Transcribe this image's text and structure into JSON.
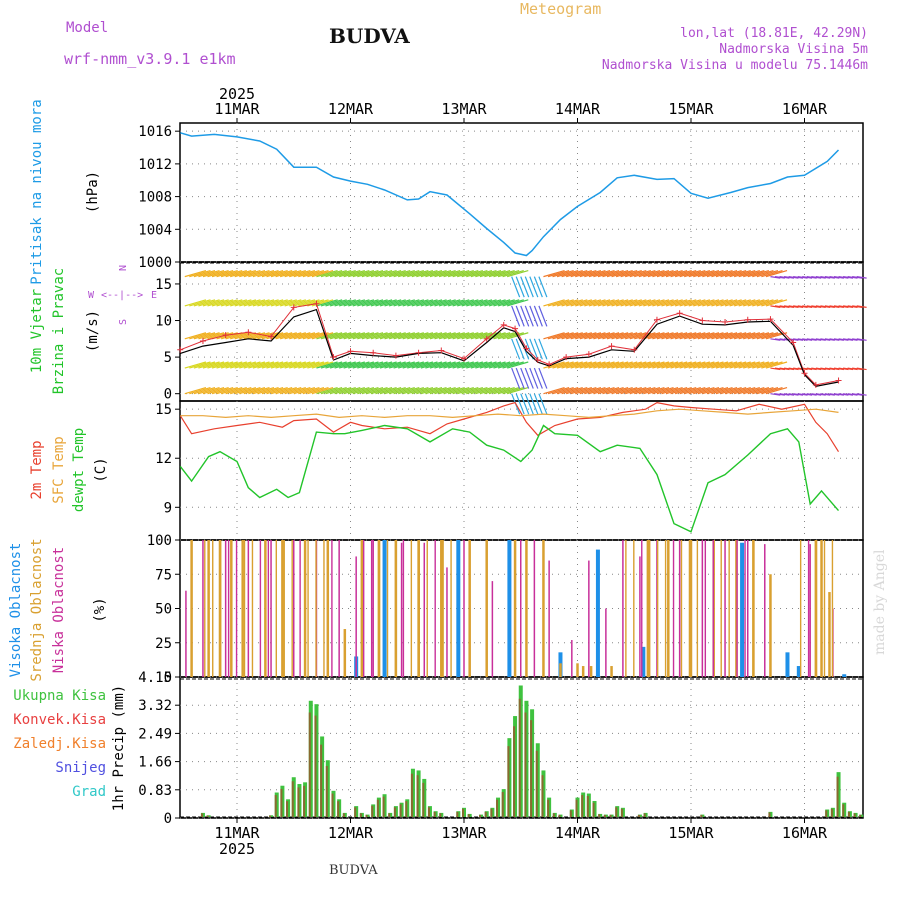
{
  "header": {
    "model_label": "Model",
    "model_name": "wrf-nmm_v3.9.1 e1km",
    "title": "BUDVA",
    "meteogram": "Meteogram",
    "lonlat": "lon,lat (18.81E, 42.29N)",
    "altitude": "Nadmorska Visina 5m",
    "model_altitude": "Nadmorska Visina u modelu 75.1446m",
    "bottom_title": "BUDVA",
    "watermark": "made by Angel"
  },
  "colors": {
    "pressure": "#1e9be6",
    "temp2m": "#e8402e",
    "sfc": "#e8a53a",
    "dew": "#22c42a",
    "high_cloud": "#1e90e8",
    "mid_cloud": "#d9a030",
    "low_cloud": "#c8309a",
    "precip": "#3fc23f",
    "conv": "#e84040",
    "frozen": "#f0802c",
    "snow": "#5050e0",
    "hail": "#30c8c8",
    "windmark": "#e0303a",
    "wind_avg": "#000000",
    "grid": "#888888"
  },
  "chart_data": [
    {
      "type": "line",
      "panel": "pressure",
      "ylabel_lines": [
        "Pritisak na nivou mora",
        "(hPa)"
      ],
      "ylim": [
        1000,
        1017
      ],
      "yticks": [
        "1016",
        "1012",
        "1008",
        "1004",
        "1000"
      ],
      "x_days": [
        "11MAR",
        "12MAR",
        "13MAR",
        "14MAR",
        "15MAR",
        "16MAR"
      ],
      "x_year": "2025",
      "grid": true,
      "x": [
        0,
        0.1,
        0.3,
        0.5,
        0.7,
        0.85,
        1.0,
        1.2,
        1.35,
        1.5,
        1.65,
        1.8,
        2.0,
        2.1,
        2.2,
        2.35,
        2.55,
        2.7,
        2.85,
        2.95,
        3.05,
        3.1,
        3.2,
        3.35,
        3.5,
        3.7,
        3.85,
        4.0,
        4.2,
        4.35,
        4.5,
        4.65,
        4.85,
        5.0,
        5.2,
        5.35,
        5.5,
        5.7,
        5.8
      ],
      "values": [
        1015.8,
        1015.4,
        1015.6,
        1015.3,
        1014.8,
        1013.8,
        1011.6,
        1011.6,
        1010.4,
        1009.9,
        1009.5,
        1008.8,
        1007.6,
        1007.7,
        1008.6,
        1008.2,
        1005.9,
        1004.1,
        1002.4,
        1001.1,
        1000.8,
        1001.4,
        1003.1,
        1005.2,
        1006.8,
        1008.5,
        1010.3,
        1010.6,
        1010.1,
        1010.2,
        1008.4,
        1007.8,
        1008.5,
        1009.1,
        1009.6,
        1010.4,
        1010.6,
        1012.3,
        1013.7
      ]
    },
    {
      "type": "line",
      "panel": "wind",
      "ylabel_lines": [
        "10m Vjetar",
        "Brzina i Pravac",
        "(m/s)"
      ],
      "compass": [
        "W",
        "E",
        "N",
        "S"
      ],
      "ylim": [
        -1,
        18
      ],
      "yticks": [
        "15",
        "10",
        "5",
        "0"
      ],
      "series": [
        {
          "name": "",
          "x": [
            0,
            0.2,
            0.4,
            0.6,
            0.8,
            1.0,
            1.2,
            1.35,
            1.5,
            1.7,
            1.9,
            2.1,
            2.3,
            2.5,
            2.7,
            2.85,
            2.95,
            3.05,
            3.15,
            3.25,
            3.4,
            3.6,
            3.8,
            4.0,
            4.2,
            4.4,
            4.6,
            4.8,
            5.0,
            5.2,
            5.4,
            5.5,
            5.6,
            5.8
          ],
          "values": [
            6.0,
            7.2,
            8.0,
            8.4,
            7.8,
            11.8,
            12.3,
            5.0,
            5.8,
            5.6,
            5.2,
            5.6,
            5.9,
            4.8,
            7.5,
            9.4,
            8.9,
            6.2,
            4.6,
            4.0,
            5.0,
            5.4,
            6.5,
            6.0,
            10.1,
            11.0,
            10.0,
            9.8,
            10.1,
            10.2,
            7.0,
            2.8,
            1.2,
            1.8
          ]
        },
        {
          "name": "",
          "x": [
            0,
            0.2,
            0.4,
            0.6,
            0.8,
            1.0,
            1.2,
            1.35,
            1.5,
            1.7,
            1.9,
            2.1,
            2.3,
            2.5,
            2.7,
            2.85,
            2.95,
            3.05,
            3.15,
            3.25,
            3.4,
            3.6,
            3.8,
            4.0,
            4.2,
            4.4,
            4.6,
            4.8,
            5.0,
            5.2,
            5.4,
            5.5,
            5.6,
            5.8
          ],
          "values": [
            5.5,
            6.5,
            7.0,
            7.5,
            7.2,
            10.5,
            11.5,
            4.6,
            5.5,
            5.2,
            5.0,
            5.5,
            5.6,
            4.5,
            7.0,
            9.0,
            8.5,
            5.8,
            4.3,
            3.8,
            4.8,
            5.0,
            6.0,
            5.8,
            9.5,
            10.6,
            9.5,
            9.4,
            9.8,
            9.9,
            6.6,
            2.6,
            1.0,
            1.6
          ]
        }
      ]
    },
    {
      "type": "line",
      "panel": "temperature",
      "ylabel_lines": [
        "2m Temp",
        "SFC Temp",
        "dewpt Temp",
        "(C)"
      ],
      "ylim": [
        7,
        15.5
      ],
      "yticks": [
        "15",
        "12",
        "9"
      ],
      "series": [
        {
          "name": "2m Temp",
          "x": [
            0,
            0.1,
            0.3,
            0.5,
            0.7,
            0.9,
            1.0,
            1.2,
            1.35,
            1.5,
            1.6,
            1.8,
            2.0,
            2.2,
            2.35,
            2.5,
            2.7,
            2.85,
            2.95,
            3.05,
            3.15,
            3.3,
            3.5,
            3.7,
            3.9,
            4.1,
            4.2,
            4.35,
            4.5,
            4.7,
            4.9,
            5.1,
            5.3,
            5.5,
            5.6,
            5.7,
            5.8
          ],
          "values": [
            14.6,
            13.5,
            13.8,
            14.0,
            14.2,
            13.9,
            14.3,
            14.4,
            13.6,
            14.2,
            14.0,
            13.8,
            13.9,
            13.5,
            14.1,
            14.4,
            14.8,
            15.2,
            15.4,
            14.2,
            13.4,
            14.0,
            14.4,
            14.5,
            14.8,
            15.0,
            15.4,
            15.2,
            15.1,
            15.0,
            14.9,
            15.3,
            15.0,
            15.3,
            14.2,
            13.5,
            12.4
          ]
        },
        {
          "name": "SFC Temp",
          "x": [
            0,
            0.2,
            0.4,
            0.6,
            0.8,
            1.0,
            1.2,
            1.4,
            1.6,
            1.8,
            2.0,
            2.2,
            2.4,
            2.6,
            2.8,
            3.0,
            3.2,
            3.4,
            3.6,
            3.8,
            4.0,
            4.2,
            4.4,
            4.6,
            4.8,
            5.0,
            5.2,
            5.4,
            5.6,
            5.8
          ],
          "values": [
            14.6,
            14.6,
            14.5,
            14.6,
            14.5,
            14.6,
            14.7,
            14.5,
            14.6,
            14.5,
            14.6,
            14.6,
            14.5,
            14.6,
            14.7,
            14.6,
            14.7,
            14.6,
            14.5,
            14.6,
            14.7,
            14.9,
            15.0,
            14.9,
            14.8,
            14.7,
            14.8,
            14.9,
            15.0,
            14.8
          ]
        },
        {
          "name": "dewpt Temp",
          "x": [
            0,
            0.1,
            0.25,
            0.35,
            0.5,
            0.6,
            0.7,
            0.85,
            0.95,
            1.05,
            1.2,
            1.35,
            1.45,
            1.6,
            1.8,
            2.0,
            2.2,
            2.4,
            2.55,
            2.7,
            2.85,
            3.0,
            3.1,
            3.2,
            3.3,
            3.5,
            3.7,
            3.85,
            4.05,
            4.2,
            4.35,
            4.5,
            4.65,
            4.8,
            5.0,
            5.2,
            5.35,
            5.45,
            5.55,
            5.65,
            5.8
          ],
          "values": [
            11.5,
            10.6,
            12.1,
            12.4,
            11.8,
            10.2,
            9.6,
            10.1,
            9.6,
            9.9,
            13.6,
            13.5,
            13.5,
            13.7,
            14.0,
            13.8,
            13.0,
            13.8,
            13.6,
            12.8,
            12.5,
            11.8,
            12.5,
            14.0,
            13.5,
            13.4,
            12.4,
            12.8,
            12.6,
            11.0,
            8.0,
            7.5,
            10.5,
            11.0,
            12.2,
            13.5,
            13.8,
            13.0,
            9.2,
            10.0,
            8.8
          ]
        }
      ]
    },
    {
      "type": "bar",
      "panel": "cloud",
      "ylabel_lines": [
        "Visoka Oblacnost",
        "Srednja Oblacnost",
        "Niska Oblacnost",
        "(%)"
      ],
      "ylim": [
        0,
        100
      ],
      "yticks": [
        "100",
        "75",
        "50",
        "25",
        "0"
      ],
      "series": [
        {
          "name": "Visoka Oblacnost",
          "x": [
            1.55,
            1.8,
            2.45,
            2.9,
            3.35,
            3.68,
            4.08,
            4.95,
            5.35,
            5.45,
            5.85
          ],
          "values": [
            15,
            100,
            100,
            100,
            18,
            93,
            22,
            98,
            18,
            8,
            2
          ]
        },
        {
          "name": "Srednja Oblacnost",
          "x": [
            0.1,
            0.25,
            0.35,
            0.45,
            0.55,
            0.75,
            0.9,
            1.1,
            1.3,
            1.45,
            1.6,
            1.75,
            1.9,
            2.1,
            2.3,
            2.55,
            2.7,
            2.95,
            3.05,
            3.2,
            3.35,
            3.5,
            3.55,
            3.62,
            3.8,
            4.12,
            4.3,
            4.5,
            4.7,
            4.9,
            5.05,
            5.2,
            5.6,
            5.65,
            5.72
          ],
          "values": [
            100,
            100,
            100,
            100,
            100,
            100,
            100,
            100,
            100,
            35,
            100,
            100,
            100,
            100,
            100,
            100,
            100,
            100,
            100,
            100,
            10,
            10,
            8,
            8,
            8,
            100,
            100,
            100,
            100,
            100,
            100,
            75,
            100,
            100,
            62
          ]
        },
        {
          "name": "Niska Oblacnost",
          "x": [
            0.05,
            0.2,
            0.4,
            0.6,
            0.8,
            1.0,
            1.2,
            1.4,
            1.55,
            1.7,
            1.95,
            2.15,
            2.35,
            2.5,
            2.75,
            3.0,
            3.12,
            3.25,
            3.45,
            3.6,
            3.75,
            3.9,
            4.05,
            4.2,
            4.4,
            4.6,
            4.8,
            5.0,
            5.15,
            5.55,
            5.75
          ],
          "values": [
            63,
            100,
            100,
            100,
            100,
            100,
            100,
            100,
            88,
            100,
            98,
            98,
            80,
            100,
            70,
            100,
            100,
            85,
            27,
            85,
            50,
            100,
            88,
            100,
            100,
            100,
            100,
            100,
            97,
            97,
            50
          ]
        }
      ]
    },
    {
      "type": "bar",
      "panel": "precip",
      "ylabel_lines": [
        "1hr Precip (mm)"
      ],
      "legend": [
        "Ukupna Kisa",
        "Konvek.Kisa",
        "Zaledj.Kisa",
        "Snijeg",
        "Grad"
      ],
      "ylim": [
        0,
        4.15
      ],
      "yticks": [
        "4.15",
        "3.32",
        "2.49",
        "1.66",
        "0.83",
        "0"
      ],
      "series": [
        {
          "name": "Ukupna Kisa",
          "x": [
            0.2,
            0.25,
            0.8,
            0.85,
            0.9,
            0.95,
            1.0,
            1.05,
            1.1,
            1.15,
            1.2,
            1.25,
            1.3,
            1.35,
            1.4,
            1.45,
            1.55,
            1.6,
            1.65,
            1.7,
            1.75,
            1.8,
            1.85,
            1.9,
            1.95,
            2.0,
            2.05,
            2.1,
            2.15,
            2.2,
            2.25,
            2.3,
            2.45,
            2.5,
            2.55,
            2.65,
            2.7,
            2.75,
            2.8,
            2.85,
            2.9,
            2.95,
            3.0,
            3.05,
            3.1,
            3.15,
            3.2,
            3.25,
            3.3,
            3.35,
            3.45,
            3.5,
            3.55,
            3.6,
            3.65,
            3.7,
            3.75,
            3.8,
            3.85,
            3.9,
            4.05,
            4.1,
            4.6,
            5.2,
            5.7,
            5.75,
            5.8,
            5.85,
            5.9,
            5.95,
            6.0
          ],
          "values": [
            0.15,
            0.08,
            0.08,
            0.75,
            0.95,
            0.55,
            1.2,
            1.0,
            1.05,
            3.45,
            3.35,
            2.4,
            1.7,
            0.8,
            0.55,
            0.15,
            0.35,
            0.15,
            0.1,
            0.4,
            0.6,
            0.7,
            0.15,
            0.35,
            0.45,
            0.55,
            1.45,
            1.4,
            1.15,
            0.35,
            0.2,
            0.15,
            0.2,
            0.3,
            0.12,
            0.1,
            0.2,
            0.3,
            0.6,
            0.85,
            2.35,
            3.0,
            3.9,
            3.45,
            3.2,
            2.2,
            1.4,
            0.6,
            0.15,
            0.1,
            0.25,
            0.6,
            0.75,
            0.72,
            0.5,
            0.12,
            0.1,
            0.1,
            0.35,
            0.3,
            0.1,
            0.15,
            0.1,
            0.18,
            0.25,
            0.3,
            1.35,
            0.45,
            0.2,
            0.15,
            0.1
          ],
          "values2": [
            1.45,
            1.0,
            0.8,
            0.6
          ]
        }
      ]
    }
  ]
}
